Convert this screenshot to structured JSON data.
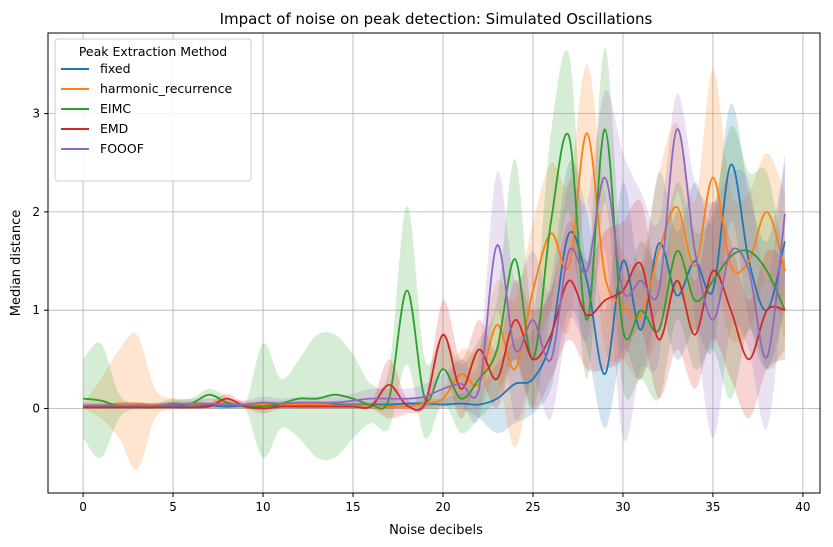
{
  "chart_data": {
    "type": "line",
    "title": "Impact of noise on peak detection: Simulated Oscillations",
    "xlabel": "Noise decibels",
    "ylabel": "Median distance",
    "xlim": [
      -1.95,
      40.95
    ],
    "ylim": [
      -0.86,
      3.82
    ],
    "xticks": [
      0,
      5,
      10,
      15,
      20,
      25,
      30,
      35,
      40
    ],
    "yticks": [
      0,
      1,
      2,
      3
    ],
    "grid": true,
    "legend": {
      "title": "Peak Extraction Method",
      "placement": "top-left"
    },
    "x": [
      0,
      1,
      2,
      3,
      4,
      5,
      6,
      7,
      8,
      9,
      10,
      11,
      12,
      13,
      14,
      15,
      16,
      17,
      18,
      19,
      20,
      21,
      22,
      23,
      24,
      25,
      26,
      27,
      28,
      29,
      30,
      31,
      32,
      33,
      34,
      35,
      36,
      37,
      38,
      39
    ],
    "series": [
      {
        "name": "fixed",
        "color": "#1f77b4",
        "values": [
          0.02,
          0.02,
          0.02,
          0.02,
          0.02,
          0.03,
          0.03,
          0.03,
          0.02,
          0.03,
          0.03,
          0.03,
          0.03,
          0.03,
          0.04,
          0.04,
          0.04,
          0.04,
          0.05,
          0.05,
          0.04,
          0.05,
          0.04,
          0.1,
          0.25,
          0.3,
          0.7,
          1.78,
          1.3,
          0.35,
          1.5,
          0.8,
          1.68,
          1.15,
          1.5,
          1.2,
          2.48,
          1.5,
          1.0,
          1.7
        ],
        "band_low": [
          0.0,
          0.0,
          0.0,
          0.0,
          0.0,
          0.0,
          0.0,
          0.0,
          0.0,
          0.0,
          0.0,
          0.0,
          0.0,
          0.0,
          0.0,
          0.0,
          0.0,
          0.0,
          0.0,
          0.0,
          0.0,
          0.0,
          -0.1,
          -0.25,
          -0.15,
          -0.05,
          0.2,
          1.0,
          0.6,
          -0.2,
          0.6,
          0.3,
          1.0,
          0.5,
          0.8,
          0.6,
          1.9,
          0.9,
          0.4,
          1.0
        ],
        "band_high": [
          0.05,
          0.05,
          0.05,
          0.05,
          0.05,
          0.06,
          0.06,
          0.06,
          0.05,
          0.06,
          0.06,
          0.06,
          0.06,
          0.06,
          0.08,
          0.08,
          0.08,
          0.08,
          0.1,
          0.1,
          0.1,
          0.15,
          0.2,
          0.45,
          0.7,
          0.8,
          1.3,
          2.5,
          2.0,
          1.0,
          2.3,
          1.4,
          2.4,
          1.8,
          2.3,
          1.9,
          3.1,
          2.2,
          1.7,
          2.5
        ]
      },
      {
        "name": "harmonic_recurrence",
        "color": "#ff7f0e",
        "values": [
          0.03,
          0.03,
          0.05,
          0.05,
          0.04,
          0.05,
          0.04,
          0.05,
          0.05,
          0.04,
          0.04,
          0.04,
          0.04,
          0.04,
          0.03,
          0.03,
          0.03,
          0.02,
          0.02,
          0.05,
          0.1,
          0.35,
          0.25,
          0.85,
          0.4,
          1.2,
          1.78,
          1.45,
          2.8,
          1.35,
          1.05,
          0.95,
          1.6,
          2.05,
          1.45,
          2.35,
          1.45,
          1.5,
          2.0,
          1.4
        ],
        "band_low": [
          0.0,
          -0.1,
          -0.3,
          -0.62,
          -0.1,
          0.0,
          0.0,
          0.0,
          0.0,
          0.0,
          0.0,
          0.0,
          0.0,
          0.0,
          0.0,
          0.0,
          0.0,
          0.0,
          0.0,
          0.0,
          0.0,
          0.1,
          0.0,
          0.3,
          -0.4,
          0.4,
          1.0,
          0.8,
          2.1,
          0.6,
          0.5,
          0.3,
          0.8,
          1.2,
          0.8,
          1.3,
          0.7,
          0.8,
          1.3,
          0.7
        ],
        "band_high": [
          0.05,
          0.3,
          0.6,
          0.75,
          0.2,
          0.1,
          0.08,
          0.1,
          0.1,
          0.08,
          0.08,
          0.08,
          0.08,
          0.08,
          0.06,
          0.06,
          0.06,
          0.05,
          0.05,
          0.1,
          0.2,
          0.6,
          0.6,
          1.3,
          1.1,
          1.9,
          2.5,
          2.3,
          3.5,
          2.2,
          1.6,
          1.5,
          2.4,
          2.9,
          2.1,
          3.45,
          2.2,
          2.2,
          2.6,
          2.2
        ]
      },
      {
        "name": "EIMC",
        "color": "#2ca02c",
        "values": [
          0.1,
          0.08,
          0.02,
          0.01,
          0.01,
          0.05,
          0.05,
          0.14,
          0.06,
          0.02,
          0.02,
          0.05,
          0.1,
          0.1,
          0.14,
          0.1,
          0.04,
          0.1,
          1.2,
          0.1,
          0.4,
          0.1,
          0.3,
          0.6,
          1.52,
          0.5,
          1.9,
          2.77,
          0.9,
          2.84,
          0.8,
          1.0,
          0.8,
          1.6,
          1.1,
          1.3,
          1.55,
          1.6,
          1.4,
          1.0
        ],
        "band_low": [
          -0.3,
          -0.5,
          -0.1,
          0.0,
          0.0,
          0.0,
          0.0,
          0.08,
          0.0,
          0.0,
          -0.5,
          -0.2,
          -0.3,
          -0.5,
          -0.5,
          -0.3,
          -0.15,
          -0.2,
          0.45,
          -0.3,
          0.05,
          -0.25,
          -0.1,
          0.1,
          0.5,
          0.0,
          1.0,
          2.0,
          0.3,
          2.1,
          0.2,
          0.3,
          0.1,
          0.9,
          0.4,
          0.6,
          0.1,
          0.8,
          0.4,
          0.6
        ],
        "band_high": [
          0.5,
          0.66,
          0.15,
          0.05,
          0.05,
          0.1,
          0.1,
          0.2,
          0.12,
          0.05,
          0.66,
          0.3,
          0.5,
          0.75,
          0.75,
          0.55,
          0.25,
          0.4,
          2.06,
          0.5,
          0.75,
          0.45,
          0.7,
          1.1,
          2.54,
          1.0,
          2.8,
          3.6,
          1.5,
          3.67,
          1.4,
          1.7,
          1.5,
          2.3,
          1.8,
          2.0,
          2.87,
          2.4,
          2.4,
          1.5
        ]
      },
      {
        "name": "EMD",
        "color": "#d62728",
        "values": [
          0.01,
          0.01,
          0.01,
          0.01,
          0.01,
          0.01,
          0.01,
          0.02,
          0.1,
          0.02,
          0.0,
          0.02,
          0.02,
          0.02,
          0.02,
          0.02,
          0.02,
          0.24,
          0.03,
          0.05,
          0.75,
          0.2,
          0.6,
          0.3,
          0.9,
          0.5,
          0.75,
          1.3,
          0.95,
          1.1,
          1.2,
          1.47,
          0.7,
          1.3,
          0.75,
          1.4,
          1.0,
          0.5,
          1.0,
          1.0
        ],
        "band_low": [
          0.0,
          0.0,
          0.0,
          0.0,
          0.0,
          0.0,
          0.0,
          0.0,
          0.0,
          0.0,
          -0.05,
          0.0,
          0.0,
          0.0,
          0.0,
          0.0,
          0.0,
          -0.1,
          -0.05,
          0.0,
          0.4,
          -0.1,
          0.3,
          0.0,
          0.5,
          0.0,
          0.3,
          0.7,
          0.4,
          0.4,
          0.5,
          0.8,
          0.1,
          0.6,
          0.2,
          0.7,
          0.3,
          -0.1,
          0.4,
          0.5
        ],
        "band_high": [
          0.02,
          0.02,
          0.02,
          0.02,
          0.02,
          0.02,
          0.02,
          0.05,
          0.15,
          0.05,
          0.05,
          0.05,
          0.05,
          0.05,
          0.05,
          0.05,
          0.05,
          0.5,
          0.1,
          0.1,
          1.1,
          0.5,
          0.9,
          0.6,
          1.3,
          1.0,
          1.2,
          1.9,
          1.5,
          1.8,
          1.9,
          2.1,
          1.3,
          2.0,
          1.3,
          2.1,
          1.7,
          1.1,
          1.6,
          1.5
        ]
      },
      {
        "name": "FOOOF",
        "color": "#9467bd",
        "values": [
          0.03,
          0.03,
          0.03,
          0.03,
          0.03,
          0.04,
          0.05,
          0.05,
          0.04,
          0.04,
          0.06,
          0.05,
          0.06,
          0.06,
          0.06,
          0.08,
          0.1,
          0.1,
          0.1,
          0.12,
          0.2,
          0.25,
          0.2,
          1.66,
          0.6,
          0.9,
          0.5,
          1.6,
          1.4,
          2.35,
          1.2,
          1.3,
          1.2,
          2.84,
          1.6,
          0.9,
          1.6,
          1.4,
          0.52,
          1.98
        ],
        "band_low": [
          0.0,
          0.0,
          0.0,
          0.0,
          0.0,
          0.0,
          0.0,
          0.0,
          0.0,
          0.0,
          0.0,
          0.0,
          0.0,
          0.0,
          0.0,
          0.0,
          0.0,
          0.0,
          0.0,
          0.0,
          0.05,
          0.05,
          -0.1,
          1.0,
          -0.1,
          0.3,
          -0.1,
          0.9,
          0.7,
          1.6,
          -0.3,
          0.4,
          0.5,
          2.2,
          0.9,
          -0.3,
          0.8,
          0.6,
          -0.2,
          1.3
        ],
        "band_high": [
          0.06,
          0.06,
          0.06,
          0.06,
          0.06,
          0.08,
          0.1,
          0.1,
          0.08,
          0.08,
          0.12,
          0.1,
          0.12,
          0.12,
          0.12,
          0.15,
          0.2,
          0.2,
          0.2,
          0.25,
          0.35,
          0.5,
          0.5,
          2.4,
          1.3,
          1.6,
          1.2,
          2.3,
          2.1,
          3.23,
          2.6,
          2.2,
          1.9,
          3.2,
          2.3,
          2.1,
          2.4,
          2.3,
          1.3,
          2.6
        ]
      }
    ]
  }
}
